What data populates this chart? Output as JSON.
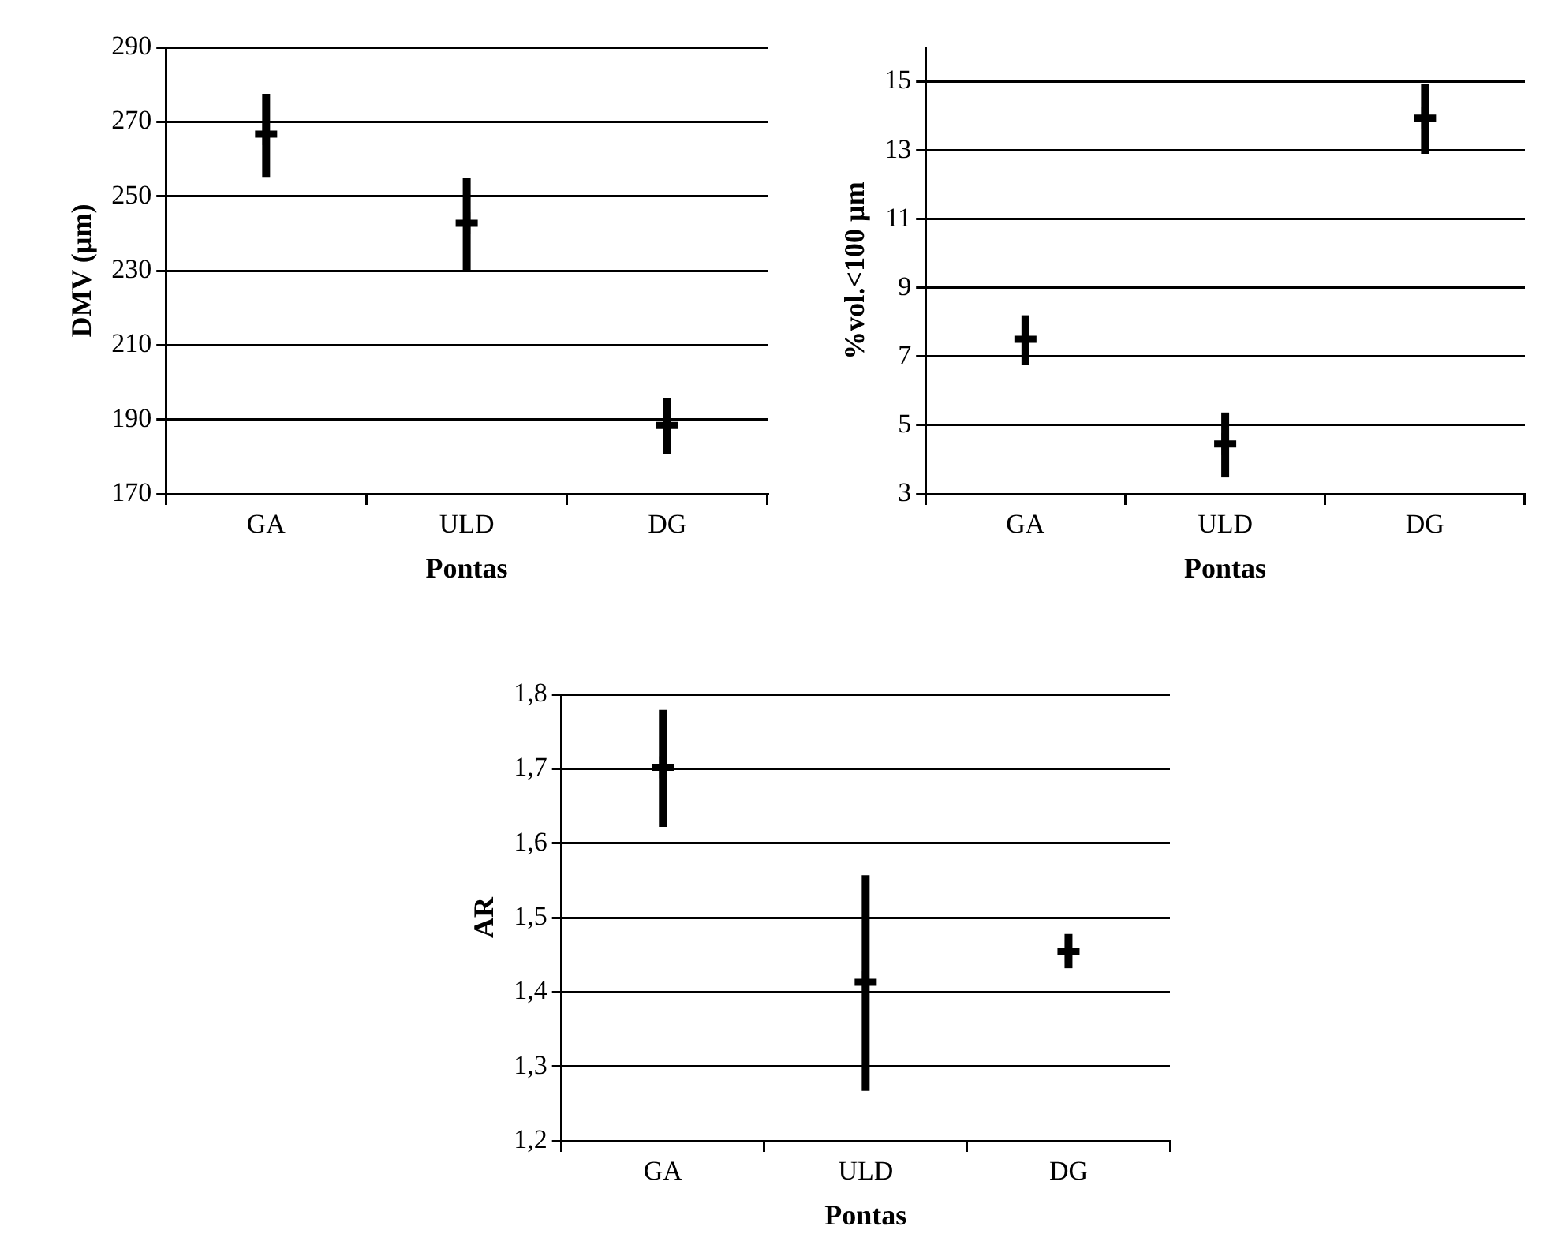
{
  "chart_data": [
    {
      "type": "scatter",
      "ylabel": "DMV (µm)",
      "xlabel": "Pontas",
      "categories": [
        "GA",
        "ULD",
        "DG"
      ],
      "values": [
        266.7,
        242.7,
        188.4
      ],
      "errors": [
        [
          255.2,
          277.5
        ],
        [
          230,
          254.9
        ],
        [
          180.6,
          195.7
        ]
      ],
      "color": "#000000",
      "ylim": [
        170,
        290
      ],
      "yticks": [
        170,
        190,
        210,
        230,
        250,
        270,
        290
      ],
      "grid": "y",
      "marker": "cross"
    },
    {
      "type": "scatter",
      "ylabel": "%vol.<100 µm",
      "xlabel": "Pontas",
      "categories": [
        "GA",
        "ULD",
        "DG"
      ],
      "values": [
        7.5,
        4.45,
        13.94
      ],
      "errors": [
        [
          6.75,
          8.2
        ],
        [
          3.48,
          5.37
        ],
        [
          12.9,
          14.92
        ]
      ],
      "color": "#000000",
      "ylim": [
        3,
        16
      ],
      "yticks": [
        3,
        5,
        7,
        9,
        11,
        13,
        15
      ],
      "grid": "y",
      "marker": "cross"
    },
    {
      "type": "scatter",
      "ylabel": "AR",
      "xlabel": "Pontas",
      "categories": [
        "GA",
        "ULD",
        "DG"
      ],
      "values": [
        1.702,
        1.413,
        1.455
      ],
      "errors": [
        [
          1.622,
          1.779
        ],
        [
          1.267,
          1.557
        ],
        [
          1.432,
          1.478
        ]
      ],
      "color": "#000000",
      "ylim": [
        1.2,
        1.8
      ],
      "yticks": [
        {
          "value": 1.2,
          "label": "1,2"
        },
        {
          "value": 1.3,
          "label": "1,3"
        },
        {
          "value": 1.4,
          "label": "1,4"
        },
        {
          "value": 1.5,
          "label": "1,5"
        },
        {
          "value": 1.6,
          "label": "1,6"
        },
        {
          "value": 1.7,
          "label": "1,7"
        },
        {
          "value": 1.8,
          "label": "1,8"
        }
      ],
      "grid": "y",
      "marker": "cross"
    }
  ]
}
